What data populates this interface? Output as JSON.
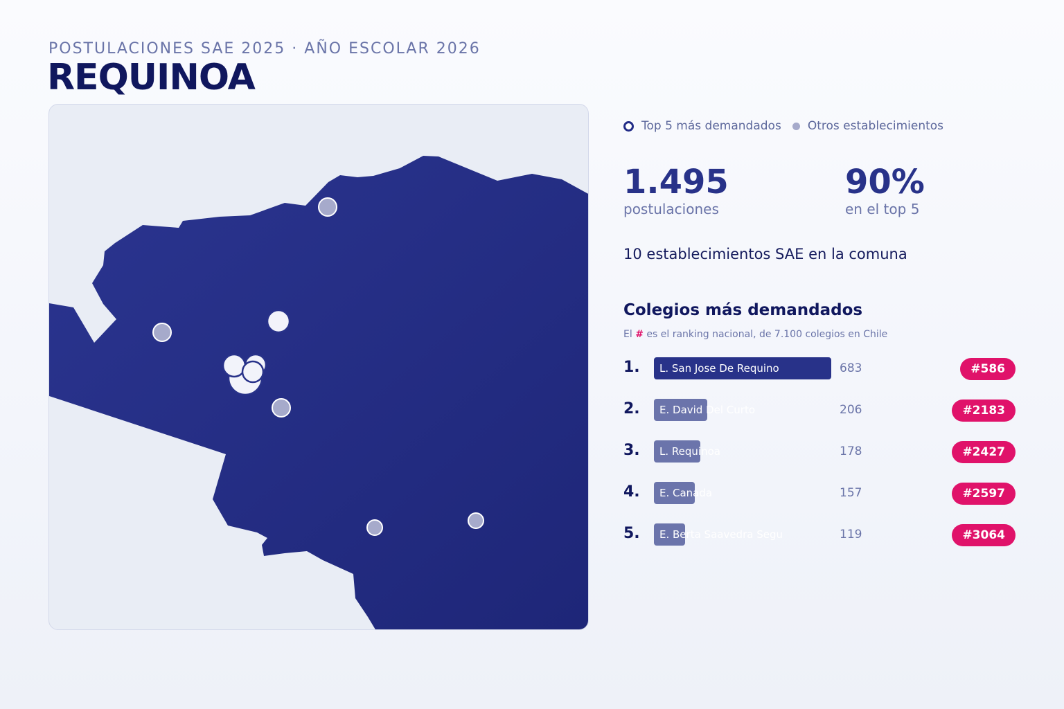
{
  "header": {
    "subtitle": "POSTULACIONES SAE 2025 · AÑO ESCOLAR 2026",
    "title": "REQUINOA"
  },
  "colors": {
    "map_fill": "#262f86",
    "map_background": "#e9edf5",
    "top5_marker": "#f2f3fa",
    "other_marker": "#a6aacb",
    "accent_badge": "#e0126a",
    "bar_top": "#283289",
    "bar_other": "#6b74ab"
  },
  "legend": {
    "top5_label": "Top 5 más demandados",
    "others_label": "Otros establecimientos"
  },
  "stats": {
    "applications_value": "1.495",
    "applications_label": "postulaciones",
    "top5_share_value": "90%",
    "top5_share_label": "en el top 5",
    "schools_count_text": "10 establecimientos SAE en la comuna"
  },
  "ranking": {
    "title": "Colegios más demandados",
    "note_prefix": "El",
    "note_hash": "#",
    "note_suffix": "es el ranking nacional, de 7.100 colegios en Chile",
    "items": [
      {
        "position": "1.",
        "name": "L. San Jose De Requino",
        "applications": 683,
        "count_label": "683",
        "national_rank": "#586"
      },
      {
        "position": "2.",
        "name": "E. David Del Curto",
        "applications": 206,
        "count_label": "206",
        "national_rank": "#2183"
      },
      {
        "position": "3.",
        "name": "L. Requinoa",
        "applications": 178,
        "count_label": "178",
        "national_rank": "#2427"
      },
      {
        "position": "4.",
        "name": "E. Canada",
        "applications": 157,
        "count_label": "157",
        "national_rank": "#2597"
      },
      {
        "position": "5.",
        "name": "E. Berta Saavedra Segu",
        "applications": 119,
        "count_label": "119",
        "national_rank": "#3064"
      }
    ]
  },
  "map": {
    "region": "Requinoa",
    "markers": [
      {
        "category": "top5"
      },
      {
        "category": "top5"
      },
      {
        "category": "top5"
      },
      {
        "category": "top5"
      },
      {
        "category": "top5"
      },
      {
        "category": "other"
      },
      {
        "category": "other"
      },
      {
        "category": "other"
      },
      {
        "category": "other"
      },
      {
        "category": "other"
      }
    ]
  }
}
